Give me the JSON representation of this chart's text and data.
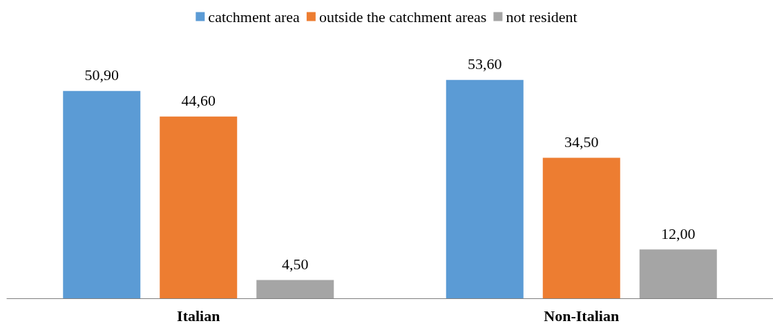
{
  "chart_data": {
    "type": "bar",
    "categories": [
      "Italian",
      "Non-Italian"
    ],
    "series": [
      {
        "name": "catchment area",
        "color": "#5b9bd5",
        "values": [
          50.9,
          53.6
        ],
        "value_labels": [
          "50,90",
          "53,60"
        ]
      },
      {
        "name": "outside the catchment areas",
        "color": "#ed7d31",
        "values": [
          44.6,
          34.5
        ],
        "value_labels": [
          "44,60",
          "34,50"
        ]
      },
      {
        "name": "not resident",
        "color": "#a5a5a5",
        "values": [
          4.5,
          12.0
        ],
        "value_labels": [
          "4,50",
          "12,00"
        ]
      }
    ],
    "legend": "top"
  }
}
